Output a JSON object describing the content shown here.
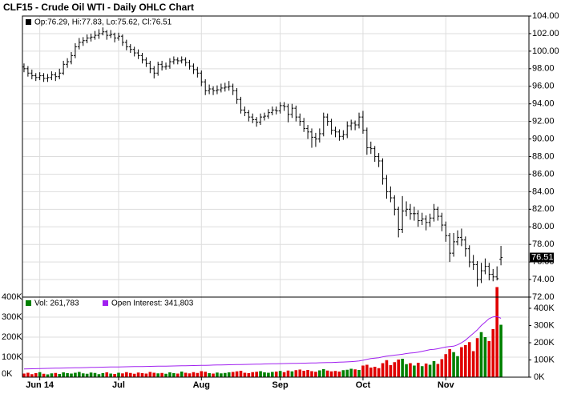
{
  "chart_data": {
    "type": "ohlc",
    "title": "CLF15 - Crude Oil WTI - Daily OHLC Chart",
    "legend_text": "Op:76.29, Hi:77.83, Lo:75.62, Cl:76.51",
    "last_label": "76.51",
    "color": "#000000",
    "grid": true,
    "xlim": [
      -0.4,
      128.1
    ],
    "xticks": [
      {
        "value": 4,
        "label": "Jun 14"
      },
      {
        "value": 24,
        "label": "Jul"
      },
      {
        "value": 45,
        "label": "Aug"
      },
      {
        "value": 65,
        "label": "Sep"
      },
      {
        "value": 86,
        "label": "Oct"
      },
      {
        "value": 107,
        "label": "Nov"
      }
    ],
    "ylim": [
      72,
      104
    ],
    "yticks": [
      {
        "value": 72,
        "label": "72.00"
      },
      {
        "value": 74,
        "label": "74.00"
      },
      {
        "value": 76,
        "label": "76.00"
      },
      {
        "value": 78,
        "label": "78.00"
      },
      {
        "value": 80,
        "label": "80.00"
      },
      {
        "value": 82,
        "label": "82.00"
      },
      {
        "value": 84,
        "label": "84.00"
      },
      {
        "value": 86,
        "label": "86.00"
      },
      {
        "value": 88,
        "label": "88.00"
      },
      {
        "value": 90,
        "label": "90.00"
      },
      {
        "value": 92,
        "label": "92.00"
      },
      {
        "value": 94,
        "label": "94.00"
      },
      {
        "value": 96,
        "label": "96.00"
      },
      {
        "value": 98,
        "label": "98.00"
      },
      {
        "value": 100,
        "label": "100.00"
      },
      {
        "value": 102,
        "label": "102.00"
      },
      {
        "value": 104,
        "label": "104.00"
      }
    ],
    "ohlc": [
      [
        98.2,
        98.6,
        97.6,
        98.0
      ],
      [
        98.0,
        98.3,
        97.1,
        97.5
      ],
      [
        97.5,
        97.9,
        96.8,
        97.2
      ],
      [
        97.2,
        97.5,
        96.6,
        97.0
      ],
      [
        97.0,
        97.6,
        96.7,
        97.2
      ],
      [
        97.2,
        97.5,
        96.5,
        96.9
      ],
      [
        96.9,
        97.4,
        96.5,
        97.0
      ],
      [
        97.0,
        97.7,
        96.7,
        97.3
      ],
      [
        97.3,
        97.6,
        96.6,
        97.1
      ],
      [
        97.1,
        98.0,
        96.8,
        97.5
      ],
      [
        97.5,
        98.9,
        97.3,
        98.5
      ],
      [
        98.5,
        99.2,
        98.1,
        98.8
      ],
      [
        98.8,
        99.9,
        98.5,
        99.5
      ],
      [
        99.5,
        100.9,
        99.2,
        100.5
      ],
      [
        100.5,
        101.5,
        100.2,
        101.0
      ],
      [
        101.0,
        101.6,
        100.6,
        101.2
      ],
      [
        101.2,
        101.9,
        100.9,
        101.5
      ],
      [
        101.5,
        102.0,
        101.1,
        101.6
      ],
      [
        101.6,
        102.3,
        101.3,
        101.8
      ],
      [
        101.8,
        102.5,
        101.4,
        102.0
      ],
      [
        102.0,
        102.7,
        101.8,
        102.2
      ],
      [
        102.2,
        102.4,
        101.3,
        101.8
      ],
      [
        101.8,
        102.4,
        101.5,
        101.9
      ],
      [
        101.9,
        102.1,
        101.0,
        101.5
      ],
      [
        101.5,
        102.1,
        101.2,
        101.7
      ],
      [
        101.7,
        101.9,
        100.6,
        101.0
      ],
      [
        101.0,
        101.3,
        100.1,
        100.5
      ],
      [
        100.5,
        100.8,
        99.8,
        100.2
      ],
      [
        100.2,
        100.5,
        99.4,
        99.8
      ],
      [
        99.8,
        100.2,
        99.1,
        99.5
      ],
      [
        99.5,
        99.8,
        98.6,
        99.0
      ],
      [
        99.0,
        99.3,
        98.2,
        98.6
      ],
      [
        98.6,
        98.9,
        97.5,
        98.0
      ],
      [
        98.0,
        98.3,
        96.9,
        97.5
      ],
      [
        97.5,
        98.8,
        97.2,
        98.5
      ],
      [
        98.5,
        98.9,
        97.8,
        98.2
      ],
      [
        98.2,
        98.7,
        97.9,
        98.3
      ],
      [
        98.3,
        99.2,
        98.0,
        98.8
      ],
      [
        98.8,
        99.4,
        98.5,
        99.0
      ],
      [
        99.0,
        99.3,
        98.5,
        98.9
      ],
      [
        98.9,
        99.4,
        98.6,
        99.0
      ],
      [
        99.0,
        99.3,
        98.3,
        98.7
      ],
      [
        98.7,
        99.0,
        97.9,
        98.3
      ],
      [
        98.3,
        98.6,
        97.4,
        97.9
      ],
      [
        97.9,
        98.2,
        97.0,
        97.5
      ],
      [
        97.5,
        97.8,
        96.0,
        96.5
      ],
      [
        96.5,
        96.8,
        95.0,
        95.5
      ],
      [
        95.5,
        96.2,
        95.1,
        95.7
      ],
      [
        95.7,
        96.0,
        95.0,
        95.5
      ],
      [
        95.5,
        96.1,
        95.1,
        95.6
      ],
      [
        95.6,
        96.3,
        95.3,
        95.8
      ],
      [
        95.8,
        96.4,
        95.4,
        95.9
      ],
      [
        95.9,
        96.6,
        95.5,
        96.0
      ],
      [
        96.0,
        96.3,
        95.0,
        95.5
      ],
      [
        95.5,
        95.8,
        94.0,
        94.5
      ],
      [
        94.5,
        94.8,
        92.9,
        93.3
      ],
      [
        93.3,
        93.7,
        92.6,
        93.0
      ],
      [
        93.0,
        93.3,
        92.0,
        92.5
      ],
      [
        92.5,
        92.9,
        91.8,
        92.2
      ],
      [
        92.2,
        92.5,
        91.4,
        91.9
      ],
      [
        91.9,
        92.9,
        91.6,
        92.5
      ],
      [
        92.5,
        93.0,
        92.1,
        92.6
      ],
      [
        92.6,
        93.4,
        92.3,
        93.0
      ],
      [
        93.0,
        93.7,
        92.7,
        93.3
      ],
      [
        93.3,
        93.7,
        92.8,
        93.2
      ],
      [
        93.2,
        94.2,
        92.9,
        93.8
      ],
      [
        93.8,
        94.2,
        93.2,
        93.7
      ],
      [
        93.7,
        94.0,
        91.9,
        92.8
      ],
      [
        92.8,
        94.0,
        92.4,
        93.5
      ],
      [
        93.5,
        93.8,
        92.0,
        92.5
      ],
      [
        92.5,
        92.9,
        91.5,
        92.0
      ],
      [
        92.0,
        92.4,
        90.8,
        91.2
      ],
      [
        91.2,
        91.6,
        90.0,
        90.8
      ],
      [
        90.8,
        91.2,
        89.0,
        90.2
      ],
      [
        90.2,
        90.7,
        89.1,
        90.0
      ],
      [
        90.0,
        91.2,
        89.6,
        90.6
      ],
      [
        90.6,
        93.0,
        90.3,
        92.5
      ],
      [
        92.5,
        92.9,
        91.5,
        92.0
      ],
      [
        92.0,
        92.3,
        90.5,
        91.0
      ],
      [
        91.0,
        91.4,
        90.2,
        90.8
      ],
      [
        90.8,
        91.1,
        89.8,
        90.3
      ],
      [
        90.3,
        91.0,
        89.9,
        90.5
      ],
      [
        90.5,
        92.0,
        90.1,
        91.5
      ],
      [
        91.5,
        92.2,
        91.0,
        91.8
      ],
      [
        91.8,
        92.1,
        91.0,
        91.6
      ],
      [
        91.6,
        93.0,
        91.2,
        92.5
      ],
      [
        92.5,
        93.2,
        90.6,
        91.0
      ],
      [
        91.0,
        91.3,
        88.2,
        89.0
      ],
      [
        89.0,
        89.7,
        88.3,
        88.9
      ],
      [
        88.9,
        89.2,
        87.4,
        88.0
      ],
      [
        88.0,
        88.4,
        86.8,
        87.5
      ],
      [
        87.5,
        87.8,
        84.8,
        85.5
      ],
      [
        85.5,
        85.9,
        83.2,
        84.0
      ],
      [
        84.0,
        84.6,
        82.8,
        83.3
      ],
      [
        83.3,
        83.6,
        81.3,
        82.0
      ],
      [
        82.0,
        82.3,
        78.8,
        79.7
      ],
      [
        79.7,
        83.5,
        79.3,
        81.8
      ],
      [
        81.8,
        82.9,
        81.2,
        82.0
      ],
      [
        82.0,
        82.6,
        80.8,
        81.5
      ],
      [
        81.5,
        82.3,
        80.7,
        81.5
      ],
      [
        81.5,
        81.9,
        80.0,
        80.7
      ],
      [
        80.7,
        81.6,
        80.2,
        80.9
      ],
      [
        80.9,
        81.3,
        79.6,
        80.5
      ],
      [
        80.5,
        81.5,
        80.0,
        81.0
      ],
      [
        81.0,
        82.6,
        80.6,
        82.0
      ],
      [
        82.0,
        82.3,
        80.7,
        81.2
      ],
      [
        81.2,
        81.6,
        79.5,
        80.2
      ],
      [
        80.2,
        80.6,
        78.3,
        79.0
      ],
      [
        79.0,
        79.3,
        76.0,
        77.0
      ],
      [
        77.0,
        79.3,
        76.6,
        78.3
      ],
      [
        78.3,
        79.6,
        77.9,
        78.8
      ],
      [
        78.8,
        79.8,
        77.8,
        78.5
      ],
      [
        78.5,
        78.9,
        76.6,
        77.5
      ],
      [
        77.5,
        77.9,
        75.4,
        76.0
      ],
      [
        76.0,
        76.8,
        75.1,
        75.7
      ],
      [
        75.7,
        76.1,
        73.2,
        74.0
      ],
      [
        74.0,
        75.9,
        73.6,
        75.0
      ],
      [
        75.0,
        76.4,
        74.6,
        75.5
      ],
      [
        75.5,
        75.9,
        73.9,
        74.6
      ],
      [
        74.6,
        75.2,
        73.8,
        74.3
      ],
      [
        74.3,
        75.5,
        73.9,
        74.1
      ],
      [
        76.29,
        77.83,
        75.62,
        76.51
      ]
    ],
    "volume": {
      "name": "Vol: 261,783",
      "color": "#008000",
      "down_color": "#e00000",
      "values": [
        18000,
        22000,
        15000,
        20000,
        25000,
        17000,
        14000,
        19000,
        21000,
        16000,
        24000,
        20000,
        18000,
        22000,
        26000,
        19000,
        17000,
        23000,
        21000,
        15000,
        20000,
        24000,
        18000,
        16000,
        22000,
        19000,
        25000,
        21000,
        17000,
        23000,
        20000,
        18000,
        26000,
        22000,
        19000,
        21000,
        17000,
        24000,
        20000,
        18000,
        28000,
        22000,
        19000,
        25000,
        21000,
        30000,
        27000,
        20000,
        18000,
        23000,
        19000,
        21000,
        24000,
        26000,
        29000,
        32000,
        22000,
        20000,
        25000,
        27000,
        30000,
        24000,
        22000,
        26000,
        28000,
        31000,
        25000,
        33000,
        29000,
        35000,
        38000,
        32000,
        36000,
        30000,
        27000,
        34000,
        40000,
        33000,
        29000,
        31000,
        28000,
        35000,
        37000,
        42000,
        39000,
        36000,
        58000,
        62000,
        48000,
        52000,
        45000,
        70000,
        85000,
        60000,
        75000,
        88000,
        92000,
        65000,
        70000,
        58000,
        72000,
        55000,
        68000,
        62000,
        80000,
        66000,
        90000,
        115000,
        140000,
        125000,
        105000,
        150000,
        160000,
        175000,
        130000,
        195000,
        225000,
        200000,
        180000,
        240000,
        450000,
        261783
      ]
    },
    "vol_ylim": [
      0,
      400000
    ],
    "vol_yticks": [
      {
        "value": 0,
        "label": "0K"
      },
      {
        "value": 100000,
        "label": "100K"
      },
      {
        "value": 200000,
        "label": "200K"
      },
      {
        "value": 300000,
        "label": "300K"
      },
      {
        "value": 400000,
        "label": "400K"
      }
    ],
    "open_interest": {
      "name": "Open Interest: 341,803",
      "color": "#a020f0",
      "axis": "y2",
      "values": [
        48000,
        48500,
        49000,
        49500,
        50000,
        50500,
        51000,
        51500,
        52000,
        52500,
        53000,
        53500,
        54000,
        54500,
        55000,
        55500,
        56000,
        56500,
        57000,
        57500,
        58000,
        58500,
        59000,
        59300,
        59600,
        60000,
        60400,
        60800,
        61200,
        61600,
        62000,
        62400,
        62800,
        63200,
        63600,
        64000,
        64400,
        64800,
        65200,
        65600,
        66000,
        66500,
        67000,
        67500,
        68000,
        68500,
        69000,
        69500,
        70000,
        70500,
        71000,
        71500,
        72000,
        72500,
        73000,
        73500,
        74000,
        74500,
        75000,
        75500,
        76000,
        76500,
        77000,
        77500,
        78000,
        78500,
        79000,
        79500,
        80000,
        80500,
        81000,
        81500,
        82000,
        82500,
        83000,
        83500,
        84000,
        84500,
        85000,
        86000,
        87000,
        88000,
        89000,
        90000,
        92000,
        94000,
        98000,
        103000,
        108000,
        110000,
        113000,
        118000,
        122000,
        125000,
        128000,
        130000,
        133000,
        137000,
        140000,
        142000,
        145000,
        150000,
        155000,
        160000,
        162000,
        165000,
        170000,
        175000,
        178000,
        180000,
        188000,
        200000,
        215000,
        235000,
        255000,
        275000,
        300000,
        320000,
        340000,
        350000,
        352000,
        341803
      ]
    },
    "y2lim": [
      0,
      465000
    ],
    "y2ticks": [
      {
        "value": 0,
        "label": "0K"
      },
      {
        "value": 100000,
        "label": "100K"
      },
      {
        "value": 200000,
        "label": "200K"
      },
      {
        "value": 300000,
        "label": "300K"
      },
      {
        "value": 400000,
        "label": "400K"
      }
    ]
  }
}
